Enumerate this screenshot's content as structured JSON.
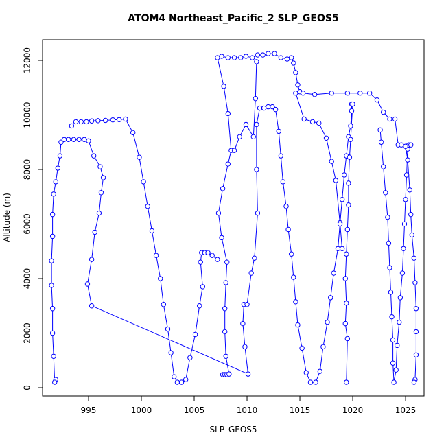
{
  "chart_data": {
    "type": "line",
    "title": "ATOM4 Northeast_Pacific_2 SLP_GEOS5",
    "x_label": "SLP_GEOS5",
    "y_label": "Altitude (m)",
    "xlim": [
      990.65,
      1026.75
    ],
    "ylim": [
      -302,
      12755
    ],
    "xticks": [
      995,
      1000,
      1005,
      1010,
      1015,
      1020,
      1025
    ],
    "yticks": [
      0,
      2000,
      4000,
      6000,
      8000,
      10000,
      12000
    ],
    "grid": false,
    "marker": "open-circle",
    "series": [
      {
        "color": "#0000ff",
        "x": [
          991.9,
          991.8,
          991.7,
          991.6,
          991.6,
          991.5,
          991.5,
          991.6,
          991.6,
          991.7,
          991.9,
          992.1,
          992.3,
          992.4,
          992.7,
          993.1,
          993.6,
          994.1,
          994.6,
          995.0,
          995.5,
          996.1,
          996.4,
          996.2,
          996.0,
          995.6,
          995.3,
          994.9,
          995.3,
          1010.1,
          1009.8,
          1009.6,
          1009.7,
          1010.0,
          1010.4,
          1010.7,
          1011.0,
          1010.9,
          1010.9,
          1011.2,
          1011.6,
          1012.0,
          1012.4,
          1012.7,
          1013.0,
          1013.2,
          1013.4,
          1013.7,
          1013.9,
          1014.2,
          1014.4,
          1014.6,
          1014.8,
          1015.2,
          1015.6,
          1016.0,
          1016.5,
          1016.9,
          1017.2,
          1017.6,
          1017.9,
          1018.2,
          1018.6,
          1018.8,
          1019.0,
          1019.2,
          1019.4,
          1019.6,
          1019.8,
          1019.9,
          1019.9,
          1020.0,
          1019.8,
          1019.7,
          1019.6,
          1019.6,
          1019.5,
          1019.4,
          1019.3,
          1019.4,
          1019.3,
          1019.5,
          1019.4,
          null,
          1022.6,
          1022.7,
          1022.9,
          1023.1,
          1023.3,
          1023.4,
          1023.5,
          1023.6,
          1023.7,
          1023.8,
          1023.8,
          1023.9,
          1024.1,
          1024.2,
          1024.4,
          1024.5,
          1024.7,
          1024.8,
          1024.9,
          1025.0,
          1025.1,
          1025.2,
          1025.3,
          1025.5,
          null,
          993.4,
          993.8,
          994.3,
          994.8,
          995.3,
          995.9,
          996.6,
          997.3,
          997.9,
          998.5,
          999.2,
          999.8,
          1000.2,
          1000.6,
          1001.0,
          1001.4,
          1001.8,
          1002.1,
          1002.5,
          1002.8,
          1003.1,
          1003.4,
          1003.8,
          1004.2,
          1004.6,
          1005.1,
          1005.5,
          1005.8,
          1005.6,
          1005.7,
          1006.0,
          1006.3,
          1006.7,
          1007.2,
          null,
          1007.7,
          1007.9,
          1008.1,
          1008.3,
          1008.0,
          1007.9,
          1007.9,
          1008.0,
          1008.1,
          1007.6,
          1007.3,
          1007.7,
          1008.2,
          1008.5,
          1008.2,
          1007.8,
          1007.2,
          1007.6,
          1008.2,
          1008.8,
          1009.4,
          1009.9,
          1010.5,
          1011.0,
          1011.5,
          1012.0,
          1012.6,
          1013.2,
          1013.8,
          1014.2,
          1014.4,
          1014.6,
          1014.8,
          1015.0,
          1015.3,
          1016.4,
          1018.0,
          1019.5,
          1020.7,
          1021.6,
          1022.3,
          1022.9,
          1023.5,
          1024.0,
          1024.3,
          1024.6,
          1025.0,
          1025.2,
          1025.4,
          1025.5,
          1025.6,
          1025.8,
          1025.9,
          1026.0,
          1026.0,
          1026.0,
          1025.9,
          1025.8,
          null,
          1010.9,
          1010.8,
          1010.6,
          1009.9,
          1009.3,
          1008.8,
          null,
          1014.6,
          1015.4,
          1016.2,
          1016.8,
          1017.5,
          1018.0,
          1018.4,
          1018.8,
          1019.0
        ],
        "values": [
          300,
          200,
          1150,
          2000,
          2900,
          3750,
          4650,
          5550,
          6350,
          7100,
          7550,
          8050,
          8500,
          9000,
          9100,
          9100,
          9100,
          9100,
          9100,
          9050,
          8500,
          8100,
          7700,
          7150,
          6400,
          5700,
          4700,
          3800,
          3000,
          500,
          1500,
          2350,
          3050,
          3050,
          4200,
          4750,
          6400,
          8000,
          9650,
          10250,
          10250,
          10300,
          10300,
          10200,
          9400,
          8500,
          7550,
          6650,
          5800,
          4900,
          4050,
          3150,
          2300,
          1450,
          550,
          200,
          200,
          600,
          1500,
          2400,
          3300,
          4200,
          5100,
          6050,
          6900,
          7800,
          8500,
          9200,
          9600,
          10150,
          10400,
          10400,
          9100,
          8450,
          7500,
          6700,
          5800,
          4900,
          4000,
          3100,
          2350,
          1800,
          200,
          null,
          9450,
          9000,
          8100,
          7150,
          6250,
          5300,
          4400,
          3500,
          2600,
          1750,
          900,
          200,
          650,
          1550,
          2400,
          3300,
          4200,
          5100,
          6000,
          6900,
          7800,
          8750,
          8900,
          8900,
          null,
          9600,
          9750,
          9750,
          9750,
          9780,
          9790,
          9800,
          9820,
          9830,
          9850,
          9350,
          8450,
          7550,
          6650,
          5750,
          4850,
          4000,
          3050,
          2150,
          1280,
          400,
          200,
          200,
          300,
          1100,
          1950,
          3000,
          3700,
          4600,
          4950,
          4950,
          4950,
          4850,
          4700,
          null,
          480,
          480,
          480,
          500,
          1150,
          2050,
          2900,
          3850,
          4600,
          5500,
          6400,
          7300,
          8200,
          8700,
          10050,
          11050,
          12100,
          12150,
          12100,
          12100,
          12100,
          12150,
          12100,
          12200,
          12200,
          12250,
          12250,
          12100,
          12050,
          12100,
          11900,
          11550,
          11100,
          10850,
          10800,
          10750,
          10800,
          10800,
          10800,
          10800,
          10550,
          10100,
          9850,
          9850,
          8900,
          8900,
          8850,
          8350,
          7250,
          6350,
          5600,
          4750,
          3850,
          2900,
          2050,
          1200,
          300,
          200,
          null,
          11950,
          10600,
          9200,
          9650,
          9200,
          8700,
          null,
          10800,
          9850,
          9750,
          9700,
          9150,
          8300,
          7600,
          6000,
          5100
        ]
      }
    ]
  }
}
